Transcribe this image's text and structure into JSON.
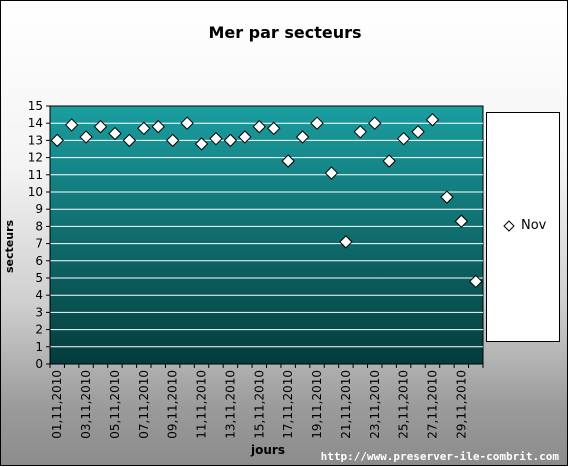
{
  "chart_data": {
    "type": "scatter",
    "title": "Mer par secteurs",
    "xlabel": "jours",
    "ylabel": "secteurs",
    "ylim": [
      0,
      15
    ],
    "yticks": [
      0,
      1,
      2,
      3,
      4,
      5,
      6,
      7,
      8,
      9,
      10,
      11,
      12,
      13,
      14,
      15
    ],
    "x_tick_labels": [
      "01,11,2010",
      "03,11,2010",
      "05,11,2010",
      "07,11,2010",
      "09,11,2010",
      "11,11,2010",
      "13,11,2010",
      "15,11,2010",
      "17,11,2010",
      "19,11,2010",
      "21,11,2010",
      "23,11,2010",
      "25,11,2010",
      "27,11,2010",
      "29,11,2010"
    ],
    "series": [
      {
        "name": "Nov",
        "marker": "diamond",
        "values": [
          13.0,
          13.9,
          13.2,
          13.8,
          13.4,
          13.0,
          13.7,
          13.8,
          13.0,
          14.0,
          12.8,
          13.1,
          13.0,
          13.2,
          13.8,
          13.7,
          11.8,
          13.2,
          14.0,
          11.1,
          7.1,
          13.5,
          14.0,
          11.8,
          13.1,
          13.5,
          14.2,
          9.7,
          8.3,
          4.8
        ]
      }
    ],
    "grid": true,
    "legend_position": "right",
    "colors": {
      "plot_top": "#1b9ea0",
      "plot_bottom": "#043b3b",
      "marker_fill": "#ffffff",
      "gridline": "#ffffff"
    }
  },
  "watermark": "http://www.preserver-ile-combrit.com"
}
